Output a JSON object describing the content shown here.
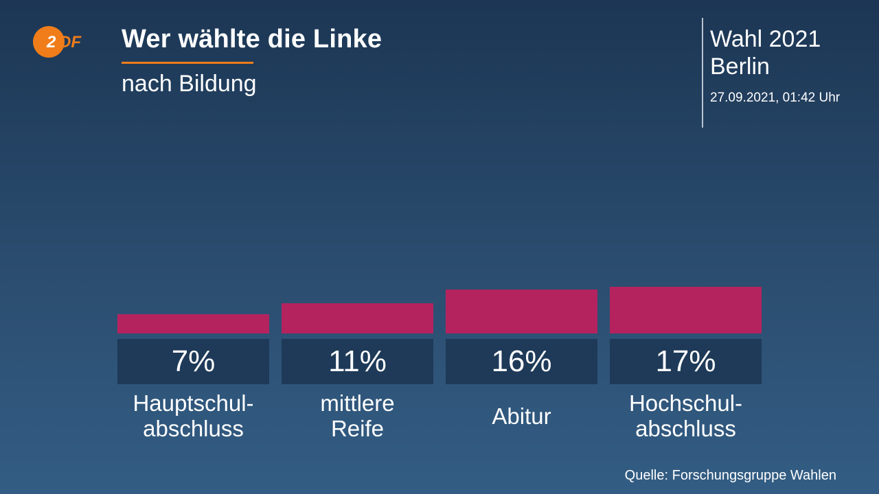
{
  "logo": {
    "name": "zdf-logo",
    "text": "ZDF",
    "circle_color": "#f07d1a"
  },
  "header": {
    "title": "Wer wählte die Linke",
    "subtitle": "nach Bildung",
    "accent_color": "#f07d1a"
  },
  "info": {
    "election": "Wahl 2021",
    "region": "Berlin",
    "timestamp": "27.09.2021, 01:42 Uhr"
  },
  "chart_data": {
    "type": "bar",
    "title": "Wer wählte die Linke",
    "subtitle": "nach Bildung",
    "categories": [
      "Hauptschul-\nabschluss",
      "mittlere\nReife",
      "Abitur",
      "Hochschul-\nabschluss"
    ],
    "values": [
      7,
      11,
      16,
      17
    ],
    "value_labels": [
      "7%",
      "11%",
      "16%",
      "17%"
    ],
    "unit": "%",
    "bar_color": "#b5235f",
    "label_box_color": "#1e3a58",
    "grid": false
  },
  "footer": {
    "source": "Quelle: Forschungsgruppe Wahlen"
  }
}
